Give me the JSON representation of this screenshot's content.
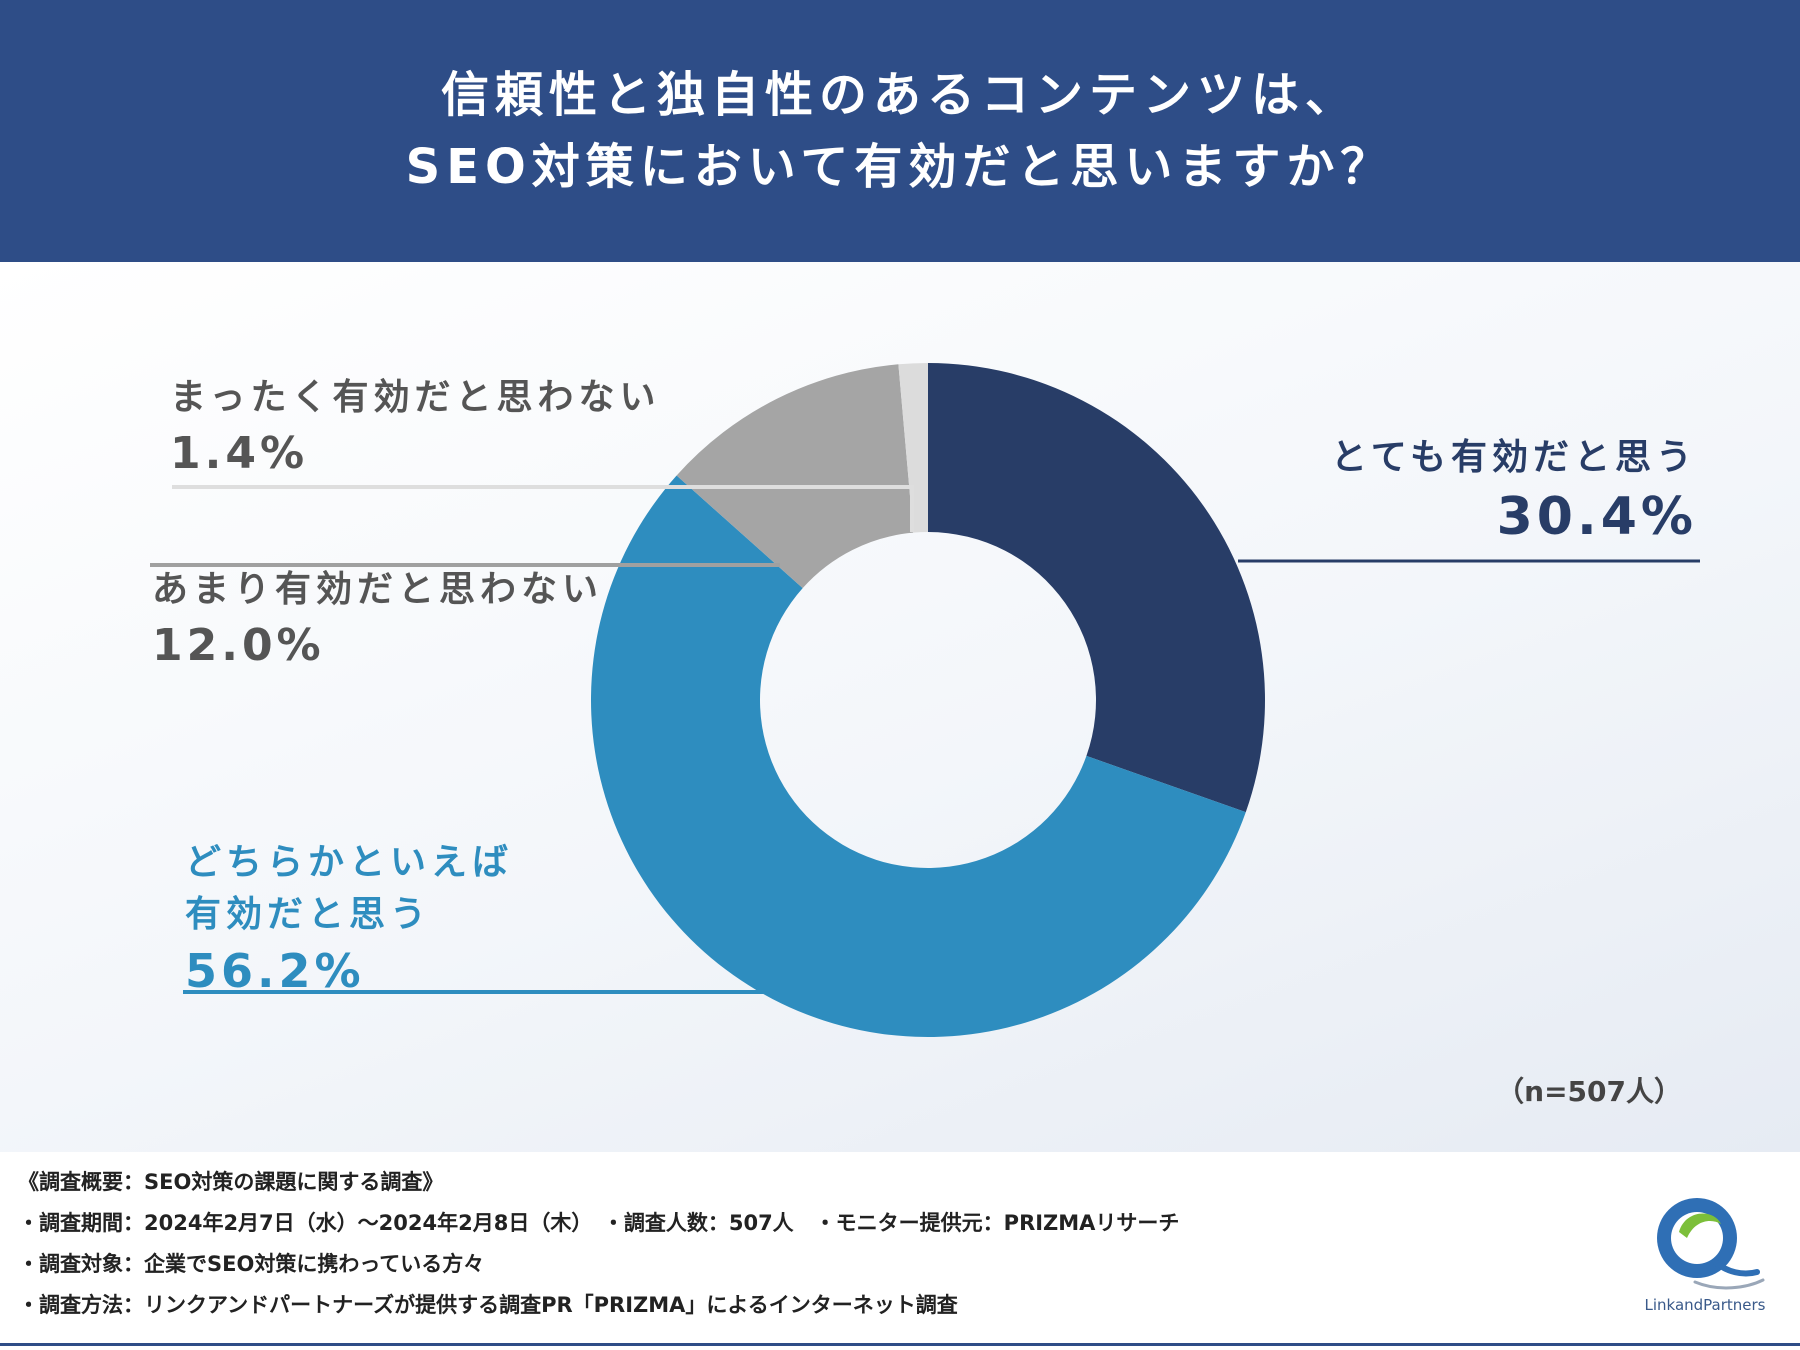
{
  "header": {
    "title_line1": "信頼性と独自性のあるコンテンツは、",
    "title_line2": "SEO対策において有効だと思いますか？",
    "background_color": "#2e4d87"
  },
  "chart_data": {
    "type": "pie",
    "variant": "donut",
    "title": "信頼性と独自性のあるコンテンツは、SEO対策において有効だと思いますか？",
    "slices": [
      {
        "label": "とても有効だと思う",
        "label_lines": [
          "とても有効だと思う"
        ],
        "value": 30.4,
        "value_text": "30.4%",
        "color": "#283d67"
      },
      {
        "label": "どちらかといえば有効だと思う",
        "label_lines": [
          "どちらかといえば",
          "有効だと思う"
        ],
        "value": 56.2,
        "value_text": "56.2%",
        "color": "#2e8dbf"
      },
      {
        "label": "あまり有効だと思わない",
        "label_lines": [
          "あまり有効だと思わない"
        ],
        "value": 12.0,
        "value_text": "12.0%",
        "color": "#a5a5a5"
      },
      {
        "label": "まったく有効だと思わない",
        "label_lines": [
          "まったく有効だと思わない"
        ],
        "value": 1.4,
        "value_text": "1.4%",
        "color": "#dcdcdc"
      }
    ],
    "start": "top, clockwise",
    "sample_size": "（n=507人）"
  },
  "footer": {
    "lines": [
      "《調査概要：SEO対策の課題に関する調査》",
      "・調査期間：2024年2月7日（水）～2024年2月8日（木）　・調査人数：507人　・モニター提供元：PRIZMAリサーチ",
      "・調査対象：企業でSEO対策に携わっている方々",
      "・調査方法：リンクアンドパートナーズが提供する調査PR「PRIZMA」によるインターネット調査"
    ],
    "logo_text": "LinkandPartners"
  }
}
